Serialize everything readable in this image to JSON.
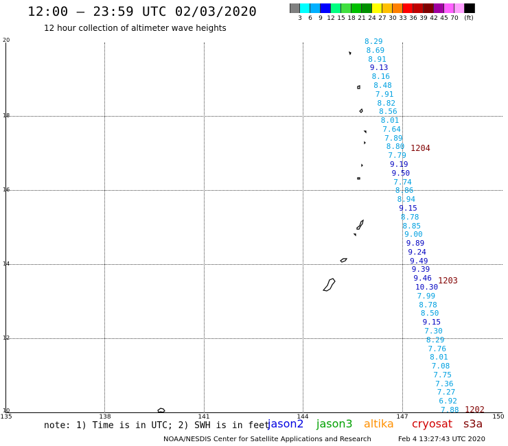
{
  "header": {
    "title": "12:00 – 23:59 UTC 02/03/2020",
    "subtitle": "12 hour collection of altimeter wave heights"
  },
  "colorbar": {
    "colors": [
      "#808080",
      "#00ffff",
      "#00b0ff",
      "#0000ff",
      "#00ff80",
      "#40e040",
      "#00c000",
      "#009000",
      "#ffff00",
      "#ffc000",
      "#ff8000",
      "#ff0000",
      "#c00000",
      "#800000",
      "#a000a0",
      "#ff60ff",
      "#ffa0ff",
      "#000000"
    ],
    "labels": [
      "3",
      "6",
      "9",
      "12",
      "15",
      "18",
      "21",
      "24",
      "27",
      "30",
      "33",
      "36",
      "39",
      "42",
      "45",
      "70",
      "(ft)"
    ]
  },
  "axes": {
    "lat_labels": [
      "20",
      "18",
      "16",
      "14",
      "12",
      "10"
    ],
    "lon_labels": [
      "135",
      "138",
      "141",
      "144",
      "147",
      "150"
    ]
  },
  "wave_heights": [
    {
      "value": "8.29",
      "color": "#00a0e0"
    },
    {
      "value": "8.69",
      "color": "#00a0e0"
    },
    {
      "value": "8.91",
      "color": "#00a0e0"
    },
    {
      "value": "9.13",
      "color": "#0000c0"
    },
    {
      "value": "8.16",
      "color": "#00a0e0"
    },
    {
      "value": "8.48",
      "color": "#00a0e0"
    },
    {
      "value": "7.91",
      "color": "#00a0e0"
    },
    {
      "value": "8.82",
      "color": "#00a0e0"
    },
    {
      "value": "8.56",
      "color": "#00a0e0"
    },
    {
      "value": "8.01",
      "color": "#00a0e0"
    },
    {
      "value": "7.64",
      "color": "#00a0e0"
    },
    {
      "value": "7.89",
      "color": "#00a0e0"
    },
    {
      "value": "8.80",
      "color": "#00a0e0"
    },
    {
      "value": "7.79",
      "color": "#00a0e0"
    },
    {
      "value": "9.19",
      "color": "#0000c0"
    },
    {
      "value": "9.50",
      "color": "#0000c0"
    },
    {
      "value": "7.74",
      "color": "#00a0e0"
    },
    {
      "value": "8.86",
      "color": "#00a0e0"
    },
    {
      "value": "8.94",
      "color": "#00a0e0"
    },
    {
      "value": "9.15",
      "color": "#0000c0"
    },
    {
      "value": "8.78",
      "color": "#00a0e0"
    },
    {
      "value": "8.85",
      "color": "#00a0e0"
    },
    {
      "value": "9.00",
      "color": "#00a0e0"
    },
    {
      "value": "9.89",
      "color": "#0000c0"
    },
    {
      "value": "9.24",
      "color": "#0000c0"
    },
    {
      "value": "9.49",
      "color": "#0000c0"
    },
    {
      "value": "9.39",
      "color": "#0000c0"
    },
    {
      "value": "9.46",
      "color": "#0000c0"
    },
    {
      "value": "10.30",
      "color": "#0000c0"
    },
    {
      "value": "7.99",
      "color": "#00a0e0"
    },
    {
      "value": "8.78",
      "color": "#00a0e0"
    },
    {
      "value": "8.50",
      "color": "#00a0e0"
    },
    {
      "value": "9.15",
      "color": "#0000c0"
    },
    {
      "value": "7.30",
      "color": "#00a0e0"
    },
    {
      "value": "8.29",
      "color": "#00a0e0"
    },
    {
      "value": "7.76",
      "color": "#00a0e0"
    },
    {
      "value": "8.01",
      "color": "#00a0e0"
    },
    {
      "value": "7.08",
      "color": "#00a0e0"
    },
    {
      "value": "7.75",
      "color": "#00a0e0"
    },
    {
      "value": "7.36",
      "color": "#00a0e0"
    },
    {
      "value": "7.27",
      "color": "#00a0e0"
    },
    {
      "value": "6.92",
      "color": "#00a0e0"
    },
    {
      "value": "7.88",
      "color": "#00a0e0"
    }
  ],
  "pass_times": [
    "1204",
    "1203",
    "1202"
  ],
  "footer": {
    "note": "note: 1) Time is in UTC; 2) SWH is in feet",
    "satellites": [
      {
        "name": "jason2",
        "color": "#0000e0"
      },
      {
        "name": "jason3",
        "color": "#00a000"
      },
      {
        "name": "altika",
        "color": "#ff9000"
      },
      {
        "name": "cryosat",
        "color": "#d00000"
      },
      {
        "name": "s3a",
        "color": "#800000"
      }
    ],
    "credit": "NOAA/NESDIS Center for Satellite Applications and Research",
    "timestamp": "Feb  4 13:27:43 UTC 2020"
  }
}
